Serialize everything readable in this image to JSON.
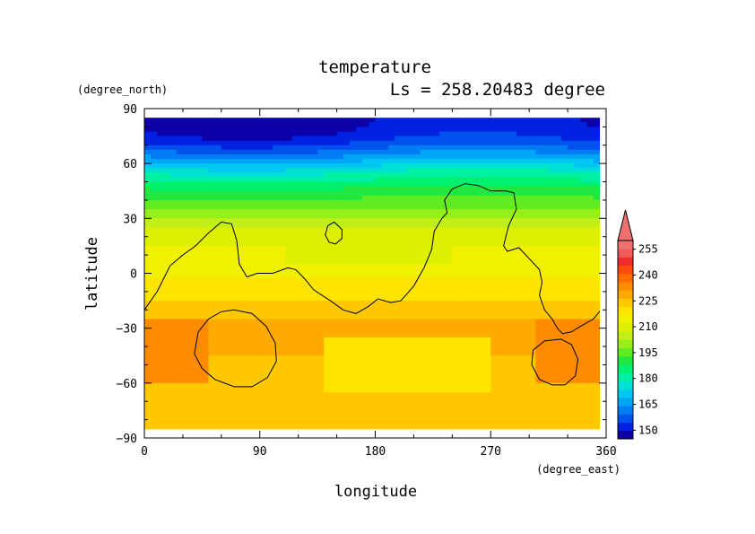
{
  "chart_data": {
    "type": "heatmap",
    "title": "temperature",
    "subtitle": "Ls = 258.20483 degree",
    "xlabel": "longitude",
    "ylabel": "latitude",
    "x_unit": "(degree_east)",
    "y_unit": "(degree_north)",
    "xlim": [
      0,
      360
    ],
    "ylim": [
      -90,
      90
    ],
    "xticks": [
      "0",
      "90",
      "180",
      "270",
      "360"
    ],
    "yticks": [
      "90",
      "60",
      "30",
      "0",
      "−30",
      "−60",
      "−90"
    ],
    "data_lat_range": [
      -85,
      85
    ],
    "colorbar": {
      "levels": [
        145,
        150,
        155,
        160,
        165,
        170,
        175,
        180,
        185,
        190,
        195,
        200,
        205,
        210,
        215,
        220,
        225,
        230,
        235,
        240,
        245,
        250,
        255,
        260
      ],
      "labels": [
        "150",
        "165",
        "180",
        "195",
        "210",
        "225",
        "240",
        "255"
      ],
      "colors": [
        "#0d00a8",
        "#0022e0",
        "#0052ee",
        "#007cf4",
        "#00a6f6",
        "#00c8f0",
        "#00e0d4",
        "#00f0a4",
        "#00f070",
        "#20e840",
        "#60ec20",
        "#98ee18",
        "#c0f018",
        "#dcf000",
        "#f0f000",
        "#ffe400",
        "#ffc800",
        "#ffaa00",
        "#ff8c00",
        "#ff6c00",
        "#ff4a10",
        "#f02c2c",
        "#f05a5a",
        "#f07070"
      ],
      "extend": "max"
    },
    "temperature_profile": {
      "lat": [
        85,
        80,
        75,
        70,
        65,
        60,
        55,
        50,
        45,
        40,
        35,
        30,
        25,
        20,
        15,
        10,
        5,
        0,
        -5,
        -10,
        -15,
        -20,
        -25,
        -30,
        -35,
        -40,
        -45,
        -50,
        -55,
        -60,
        -65,
        -70,
        -75,
        -80,
        -85
      ],
      "temp": [
        149,
        150,
        152,
        157,
        164,
        172,
        180,
        186,
        192,
        196,
        200,
        204,
        210,
        214,
        215,
        216,
        217,
        219,
        221,
        223,
        225,
        227,
        230,
        233,
        234,
        232,
        230,
        228,
        229,
        229,
        228,
        228,
        228,
        228,
        228
      ]
    },
    "warm_regions": [
      {
        "lon_range": [
          0,
          50
        ],
        "lat_range": [
          -60,
          -25
        ],
        "temp": 238
      },
      {
        "lon_range": [
          305,
          360
        ],
        "lat_range": [
          -60,
          -25
        ],
        "temp": 238
      }
    ],
    "cool_regions": [
      {
        "lon_range": [
          140,
          270
        ],
        "lat_range": [
          -65,
          -35
        ],
        "temp": 223
      },
      {
        "lon_range": [
          110,
          240
        ],
        "lat_range": [
          5,
          25
        ],
        "temp": 211
      }
    ],
    "contours": [
      {
        "name": "topography-north",
        "points": [
          [
            0,
            -20
          ],
          [
            10,
            -10
          ],
          [
            20,
            4
          ],
          [
            30,
            10
          ],
          [
            40,
            15
          ],
          [
            50,
            22
          ],
          [
            60,
            28
          ],
          [
            68,
            27
          ],
          [
            72,
            18
          ],
          [
            74,
            5
          ],
          [
            80,
            -2
          ],
          [
            88,
            0
          ],
          [
            100,
            0
          ],
          [
            112,
            3
          ],
          [
            118,
            2
          ],
          [
            125,
            -3
          ],
          [
            132,
            -9
          ],
          [
            145,
            -15
          ],
          [
            155,
            -20
          ],
          [
            165,
            -22
          ],
          [
            175,
            -18
          ],
          [
            182,
            -14
          ],
          [
            192,
            -16
          ],
          [
            200,
            -15
          ],
          [
            210,
            -7
          ],
          [
            218,
            3
          ],
          [
            224,
            13
          ],
          [
            226,
            23
          ],
          [
            232,
            30
          ],
          [
            236,
            33
          ],
          [
            234,
            40
          ],
          [
            240,
            46
          ],
          [
            250,
            49
          ],
          [
            260,
            48
          ],
          [
            270,
            45
          ],
          [
            282,
            45
          ],
          [
            288,
            44
          ],
          [
            290,
            35
          ],
          [
            284,
            26
          ],
          [
            280,
            15
          ],
          [
            283,
            12
          ],
          [
            292,
            14
          ],
          [
            300,
            8
          ],
          [
            308,
            2
          ],
          [
            310,
            -5
          ],
          [
            308,
            -12
          ],
          [
            312,
            -20
          ],
          [
            318,
            -25
          ],
          [
            322,
            -30
          ],
          [
            326,
            -33
          ],
          [
            333,
            -32
          ],
          [
            340,
            -29
          ],
          [
            350,
            -25
          ],
          [
            356,
            -20
          ],
          [
            360,
            -17
          ]
        ]
      },
      {
        "name": "crater-west",
        "points": [
          [
            70,
            -20
          ],
          [
            84,
            -22
          ],
          [
            95,
            -29
          ],
          [
            102,
            -38
          ],
          [
            103,
            -48
          ],
          [
            96,
            -57
          ],
          [
            84,
            -62
          ],
          [
            70,
            -62
          ],
          [
            55,
            -58
          ],
          [
            45,
            -52
          ],
          [
            39,
            -44
          ],
          [
            42,
            -32
          ],
          [
            50,
            -25
          ],
          [
            60,
            -21
          ]
        ]
      },
      {
        "name": "crater-east",
        "points": [
          [
            325,
            -36
          ],
          [
            333,
            -39
          ],
          [
            338,
            -47
          ],
          [
            336,
            -56
          ],
          [
            328,
            -61
          ],
          [
            318,
            -61
          ],
          [
            308,
            -58
          ],
          [
            302,
            -50
          ],
          [
            303,
            -42
          ],
          [
            312,
            -37
          ]
        ]
      },
      {
        "name": "hill-small",
        "points": [
          [
            148,
            28
          ],
          [
            154,
            24
          ],
          [
            154,
            19
          ],
          [
            149,
            16
          ],
          [
            144,
            17
          ],
          [
            141,
            21
          ],
          [
            143,
            26
          ]
        ]
      }
    ]
  }
}
